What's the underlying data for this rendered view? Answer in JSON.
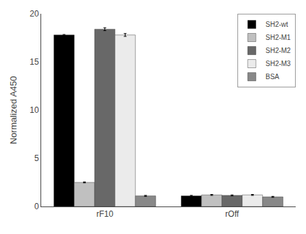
{
  "chart_data": {
    "type": "bar",
    "categories": [
      "rF10",
      "rOff"
    ],
    "series": [
      {
        "name": "SH2-wt",
        "color": "#000000",
        "values": [
          17.8,
          1.1
        ],
        "errors": [
          0.05,
          0.05
        ]
      },
      {
        "name": "SH2-M1",
        "color": "#c0c0c0",
        "values": [
          2.5,
          1.2
        ],
        "errors": [
          0.05,
          0.05
        ]
      },
      {
        "name": "SH2-M2",
        "color": "#686868",
        "values": [
          18.4,
          1.15
        ],
        "errors": [
          0.15,
          0.05
        ]
      },
      {
        "name": "SH2-M3",
        "color": "#ebebeb",
        "values": [
          17.8,
          1.2
        ],
        "errors": [
          0.15,
          0.05
        ]
      },
      {
        "name": "BSA",
        "color": "#888888",
        "values": [
          1.1,
          1.0
        ],
        "errors": [
          0.05,
          0.05
        ]
      }
    ],
    "ylabel": "Normalized A450",
    "ylim": [
      0,
      20
    ],
    "yticks": [
      0,
      5,
      10,
      15,
      20
    ],
    "grid": false,
    "legend": "upper right"
  }
}
